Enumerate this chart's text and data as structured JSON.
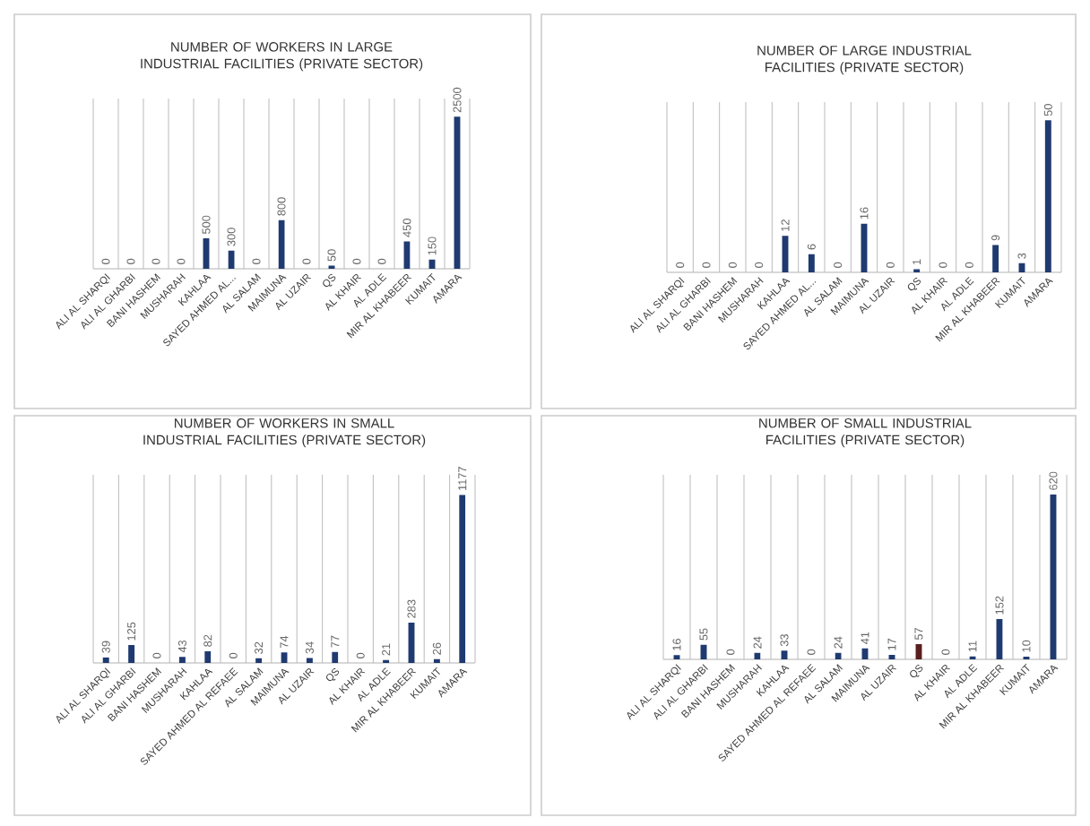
{
  "chart_data": [
    {
      "type": "bar",
      "title": "NUMBER OF WORKERS IN LARGE INDUSTRIAL FACILITIES (PRIVATE SECTOR)",
      "categories": [
        "ALI AL SHARQI",
        "ALI AL GHARBI",
        "BANI HASHEM",
        "MUSHARAH",
        "KAHLAA",
        "SAYED AHMED AL...",
        "AL SALAM",
        "MAIMUNA",
        "AL UZAIR",
        "QS",
        "AL KHAIR",
        "AL ADLE",
        "MIR AL KHABEER",
        "KUMAIT",
        "AMARA"
      ],
      "values": [
        0,
        0,
        0,
        0,
        500,
        300,
        0,
        800,
        0,
        50,
        0,
        0,
        450,
        150,
        2500
      ],
      "color": "#1f3a70",
      "data_labels": true,
      "grid": "x"
    },
    {
      "type": "bar",
      "title": "NUMBER OF LARGE INDUSTRIAL FACILITIES (PRIVATE SECTOR)",
      "categories": [
        "ALI AL SHARQI",
        "ALI AL GHARBI",
        "BANI HASHEM",
        "MUSHARAH",
        "KAHLAA",
        "SAYED AHMED AL...",
        "AL SALAM",
        "MAIMUNA",
        "AL UZAIR",
        "QS",
        "AL KHAIR",
        "AL ADLE",
        "MIR AL KHABEER",
        "KUMAIT",
        "AMARA"
      ],
      "values": [
        0,
        0,
        0,
        0,
        12,
        6,
        0,
        16,
        0,
        1,
        0,
        0,
        9,
        3,
        50
      ],
      "color": "#1f3a70",
      "data_labels": true,
      "grid": "x"
    },
    {
      "type": "bar",
      "title": "NUMBER OF WORKERS IN SMALL INDUSTRIAL FACILITIES (PRIVATE SECTOR)",
      "categories": [
        "ALI AL SHARQI",
        "ALI AL GHARBI",
        "BANI HASHEM",
        "MUSHARAH",
        "KAHLAA",
        "SAYED AHMED AL REFAEE",
        "AL SALAM",
        "MAIMUNA",
        "AL UZAIR",
        "QS",
        "AL KHAIR",
        "AL ADLE",
        "MIR AL KHABEER",
        "KUMAIT",
        "AMARA"
      ],
      "values": [
        39,
        125,
        0,
        43,
        82,
        0,
        32,
        74,
        34,
        77,
        0,
        21,
        283,
        26,
        1177
      ],
      "color": "#1f3a70",
      "data_labels": true,
      "grid": "x"
    },
    {
      "type": "bar",
      "title": "NUMBER OF SMALL INDUSTRIAL FACILITIES (PRIVATE SECTOR)",
      "categories": [
        "ALI AL SHARQI",
        "ALI AL GHARBI",
        "BANI HASHEM",
        "MUSHARAH",
        "KAHLAA",
        "SAYED AHMED AL REFAEE",
        "AL SALAM",
        "MAIMUNA",
        "AL UZAIR",
        "QS",
        "AL KHAIR",
        "AL ADLE",
        "MIR AL KHABEER",
        "KUMAIT",
        "AMARA"
      ],
      "values": [
        16,
        55,
        0,
        24,
        33,
        0,
        24,
        41,
        17,
        57,
        0,
        11,
        152,
        10,
        620
      ],
      "colors": [
        "#1f3a70",
        "#1f3a70",
        "#1f3a70",
        "#1f3a70",
        "#1f3a70",
        "#1f3a70",
        "#1f3a70",
        "#1f3a70",
        "#1f3a70",
        "#5a1e1e",
        "#1f3a70",
        "#1f3a70",
        "#1f3a70",
        "#1f3a70",
        "#1f3a70"
      ],
      "data_labels": true,
      "grid": "x"
    }
  ]
}
